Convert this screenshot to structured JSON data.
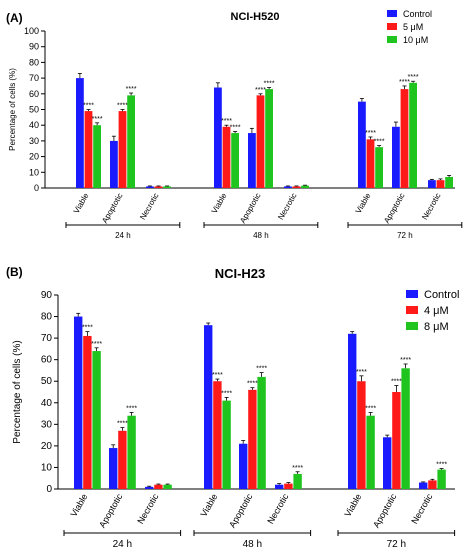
{
  "panels": [
    {
      "label": "(A)"
    },
    {
      "label": "(B)"
    }
  ],
  "chart_data": [
    {
      "type": "bar",
      "title": "NCI-H520",
      "ylabel": "Percentage of cells (%)",
      "xlabel": "",
      "ylim": [
        0,
        100
      ],
      "yticks": [
        0,
        10,
        20,
        30,
        40,
        50,
        60,
        70,
        80,
        90,
        100
      ],
      "groups": [
        "24 h",
        "48 h",
        "72 h"
      ],
      "categories": [
        "Viable",
        "Apoptotic",
        "Necrotic"
      ],
      "legend_position": "top-right",
      "series": [
        {
          "name": "Control",
          "color": "#1a1aff",
          "values": [
            [
              70,
              30,
              1
            ],
            [
              64,
              35,
              1
            ],
            [
              55,
              39,
              5
            ]
          ],
          "errors": [
            [
              3,
              3,
              0.3
            ],
            [
              3,
              3,
              0.3
            ],
            [
              2,
              3,
              0.5
            ]
          ],
          "stars": [
            [
              "",
              "",
              ""
            ],
            [
              "",
              "",
              ""
            ],
            [
              "",
              "",
              ""
            ]
          ]
        },
        {
          "name": "5 μM",
          "color": "#ff1a1a",
          "values": [
            [
              49,
              49,
              1
            ],
            [
              39,
              59,
              1
            ],
            [
              31,
              63,
              5
            ]
          ],
          "errors": [
            [
              1,
              1,
              0.3
            ],
            [
              1,
              1,
              0.3
            ],
            [
              1.5,
              2,
              0.8
            ]
          ],
          "stars": [
            [
              "****",
              "****",
              ""
            ],
            [
              "****",
              "****",
              ""
            ],
            [
              "****",
              "****",
              ""
            ]
          ]
        },
        {
          "name": "10 μM",
          "color": "#1fc41f",
          "values": [
            [
              40,
              59,
              1
            ],
            [
              35,
              63,
              1.5
            ],
            [
              26,
              67,
              7
            ]
          ],
          "errors": [
            [
              1.5,
              1.5,
              0.3
            ],
            [
              1,
              1,
              0.3
            ],
            [
              1,
              1,
              1
            ]
          ],
          "stars": [
            [
              "****",
              "****",
              ""
            ],
            [
              "****",
              "****",
              ""
            ],
            [
              "****",
              "****",
              ""
            ]
          ]
        }
      ]
    },
    {
      "type": "bar",
      "title": "NCI-H23",
      "ylabel": "Percentage of cells (%)",
      "xlabel": "",
      "ylim": [
        0,
        90
      ],
      "yticks": [
        0,
        10,
        20,
        30,
        40,
        50,
        60,
        70,
        80,
        90
      ],
      "groups": [
        "24 h",
        "48 h",
        "72 h"
      ],
      "categories": [
        "Viable",
        "Apoptotic",
        "Necrotic"
      ],
      "legend_position": "top-right",
      "series": [
        {
          "name": "Control",
          "color": "#1a1aff",
          "values": [
            [
              80,
              19,
              1
            ],
            [
              76,
              21,
              2
            ],
            [
              72,
              24,
              3
            ]
          ],
          "errors": [
            [
              1.5,
              1.5,
              0.3
            ],
            [
              1,
              1.5,
              0.5
            ],
            [
              1,
              1,
              0.3
            ]
          ],
          "stars": [
            [
              "",
              "",
              ""
            ],
            [
              "",
              "",
              ""
            ],
            [
              "",
              "",
              ""
            ]
          ]
        },
        {
          "name": "4 μM",
          "color": "#ff1a1a",
          "values": [
            [
              71,
              27,
              2
            ],
            [
              50,
              46,
              2.5
            ],
            [
              50,
              45,
              4
            ]
          ],
          "errors": [
            [
              2,
              1.5,
              0.3
            ],
            [
              1,
              1,
              0.5
            ],
            [
              2.5,
              3,
              0.5
            ]
          ],
          "stars": [
            [
              "****",
              "****",
              ""
            ],
            [
              "****",
              "****",
              ""
            ],
            [
              "****",
              "****",
              ""
            ]
          ]
        },
        {
          "name": "8 μM",
          "color": "#1fc41f",
          "values": [
            [
              64,
              34,
              2
            ],
            [
              41,
              52,
              7
            ],
            [
              34,
              56,
              9
            ]
          ],
          "errors": [
            [
              1.5,
              1.5,
              0.3
            ],
            [
              1.5,
              2,
              1
            ],
            [
              1.5,
              2,
              0.5
            ]
          ],
          "stars": [
            [
              "****",
              "****",
              ""
            ],
            [
              "****",
              "****",
              "****"
            ],
            [
              "****",
              "****",
              "****"
            ]
          ]
        }
      ]
    }
  ]
}
